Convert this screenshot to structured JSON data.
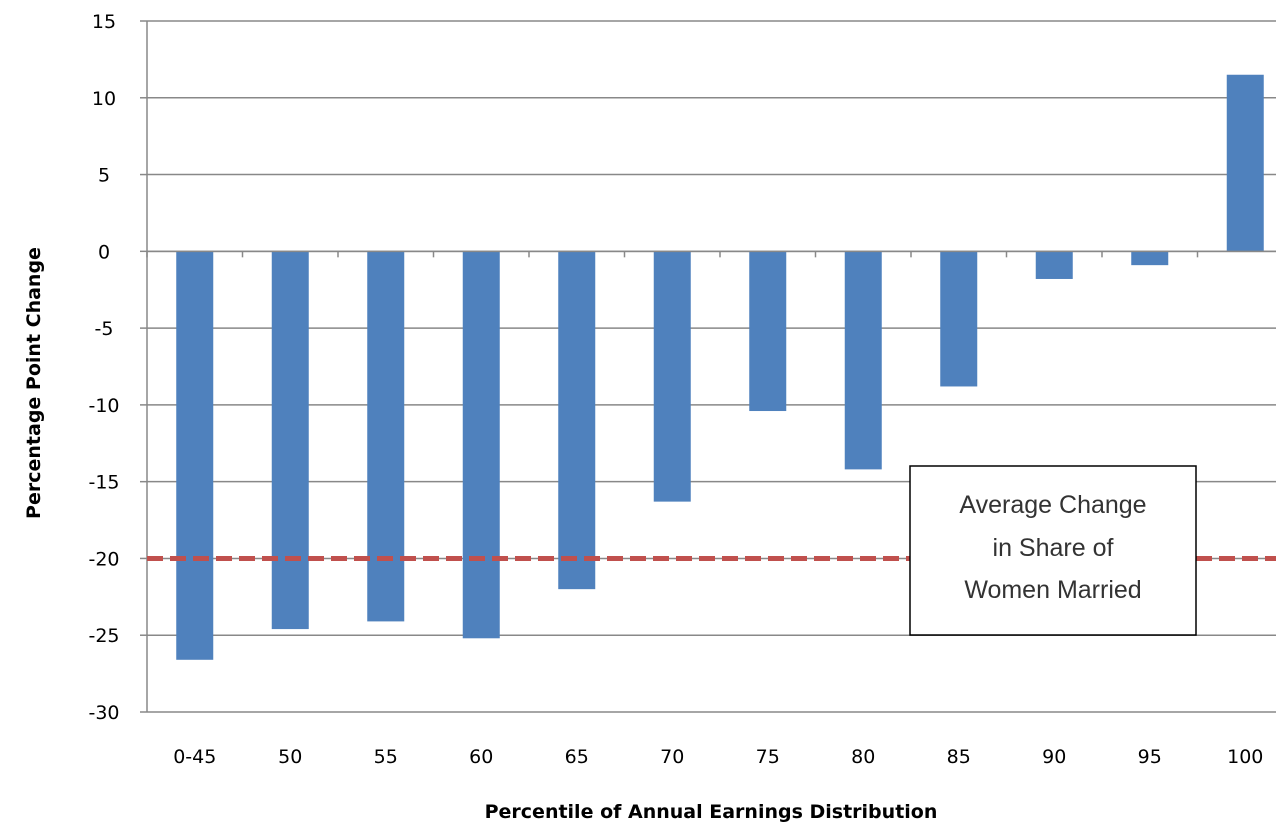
{
  "chart_data": {
    "type": "bar",
    "title": "",
    "xlabel": "Percentile of Annual Earnings Distribution",
    "ylabel": "Percentage Point Change",
    "categories": [
      "0-45",
      "50",
      "55",
      "60",
      "65",
      "70",
      "75",
      "80",
      "85",
      "90",
      "95",
      "100"
    ],
    "values": [
      -26.6,
      -24.6,
      -24.1,
      -25.2,
      -22.0,
      -16.3,
      -10.4,
      -14.2,
      -8.8,
      -1.8,
      -0.9,
      11.5
    ],
    "ylim": [
      -30,
      15
    ],
    "yticks": [
      "15",
      "10",
      "5",
      "0",
      "-5",
      "-10",
      "-15",
      "-20",
      "-25",
      "-30"
    ],
    "grid": true,
    "bar_color": "#4F81BD",
    "reference_line": {
      "value": -20,
      "color": "#C0504D",
      "style": "dashed"
    },
    "annotation": {
      "lines": [
        "Average Change",
        "in Share of",
        "Women Married"
      ]
    }
  }
}
